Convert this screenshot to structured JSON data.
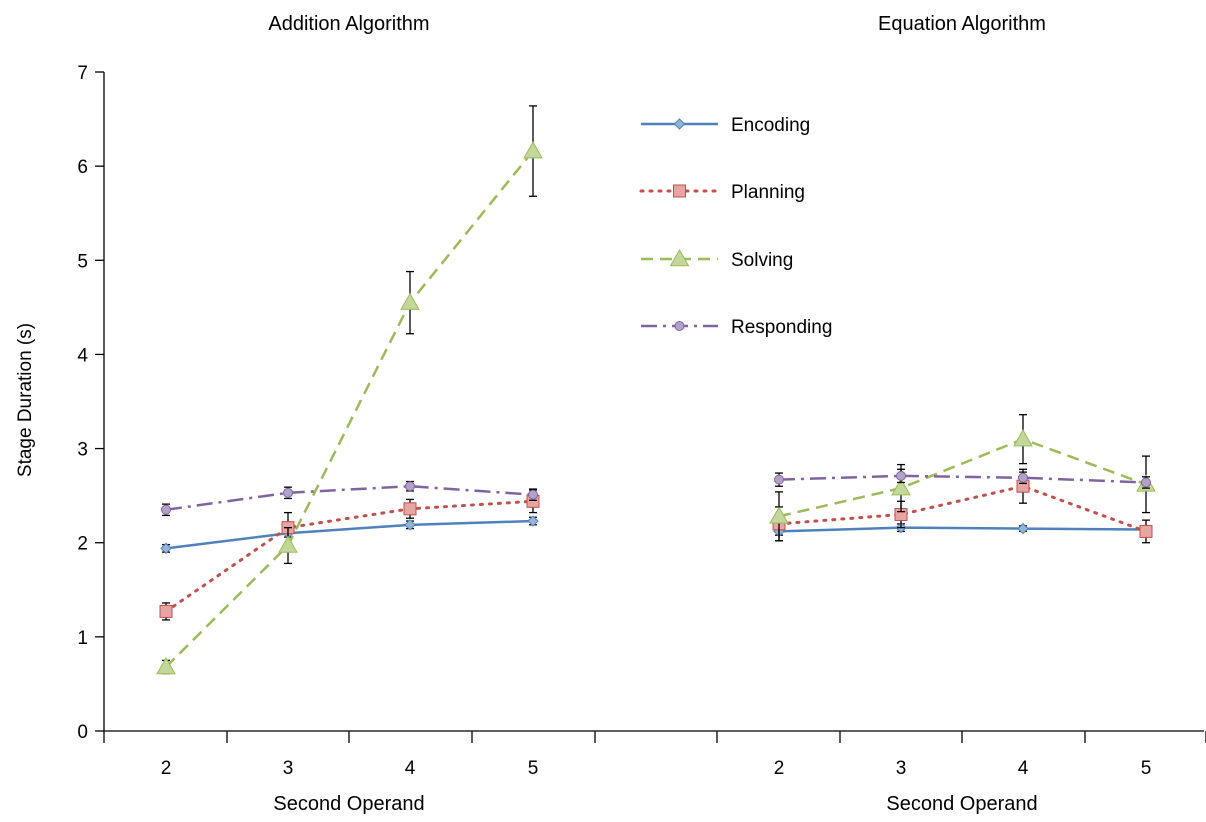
{
  "chart_data": {
    "type": "line",
    "ylabel": "Stage Duration (s)",
    "ylim": [
      0,
      7
    ],
    "yticks": [
      "0",
      "1",
      "2",
      "3",
      "4",
      "5",
      "6",
      "7"
    ],
    "grid": false,
    "legend_position": "top-center",
    "panels": [
      {
        "title": "Addition Algorithm",
        "xlabel": "Second Operand",
        "x": [
          "2",
          "3",
          "4",
          "5"
        ]
      },
      {
        "title": "Equation Algorithm",
        "xlabel": "Second Operand",
        "x": [
          "2",
          "3",
          "4",
          "5"
        ]
      }
    ],
    "series": [
      {
        "name": "Encoding",
        "color": "#4f81bd",
        "dash": "solid",
        "marker": "diamond",
        "addition": [
          1.94,
          2.1,
          2.19,
          2.23
        ],
        "addition_err": [
          0.04,
          0.04,
          0.04,
          0.04
        ],
        "equation": [
          2.12,
          2.16,
          2.15,
          2.14
        ],
        "equation_err": [
          0.04,
          0.04,
          0.03,
          0.04
        ]
      },
      {
        "name": "Planning",
        "color": "#c0504d",
        "dash": "dotted",
        "marker": "square",
        "addition": [
          1.27,
          2.16,
          2.36,
          2.44
        ],
        "addition_err": [
          0.09,
          0.16,
          0.1,
          0.12
        ],
        "equation": [
          2.2,
          2.3,
          2.6,
          2.12
        ],
        "equation_err": [
          0.18,
          0.14,
          0.18,
          0.12
        ]
      },
      {
        "name": "Solving",
        "color": "#9bbb59",
        "dash": "dashed",
        "marker": "triangle",
        "addition": [
          0.68,
          1.97,
          4.55,
          6.16
        ],
        "addition_err": [
          0.07,
          0.19,
          0.33,
          0.48
        ],
        "equation": [
          2.28,
          2.58,
          3.1,
          2.62
        ],
        "equation_err": [
          0.26,
          0.25,
          0.26,
          0.3
        ]
      },
      {
        "name": "Responding",
        "color": "#8064a2",
        "dash": "dashdot",
        "marker": "circle",
        "addition": [
          2.35,
          2.53,
          2.6,
          2.51
        ],
        "addition_err": [
          0.06,
          0.06,
          0.05,
          0.06
        ],
        "equation": [
          2.67,
          2.71,
          2.69,
          2.64
        ],
        "equation_err": [
          0.07,
          0.07,
          0.06,
          0.06
        ]
      }
    ]
  }
}
